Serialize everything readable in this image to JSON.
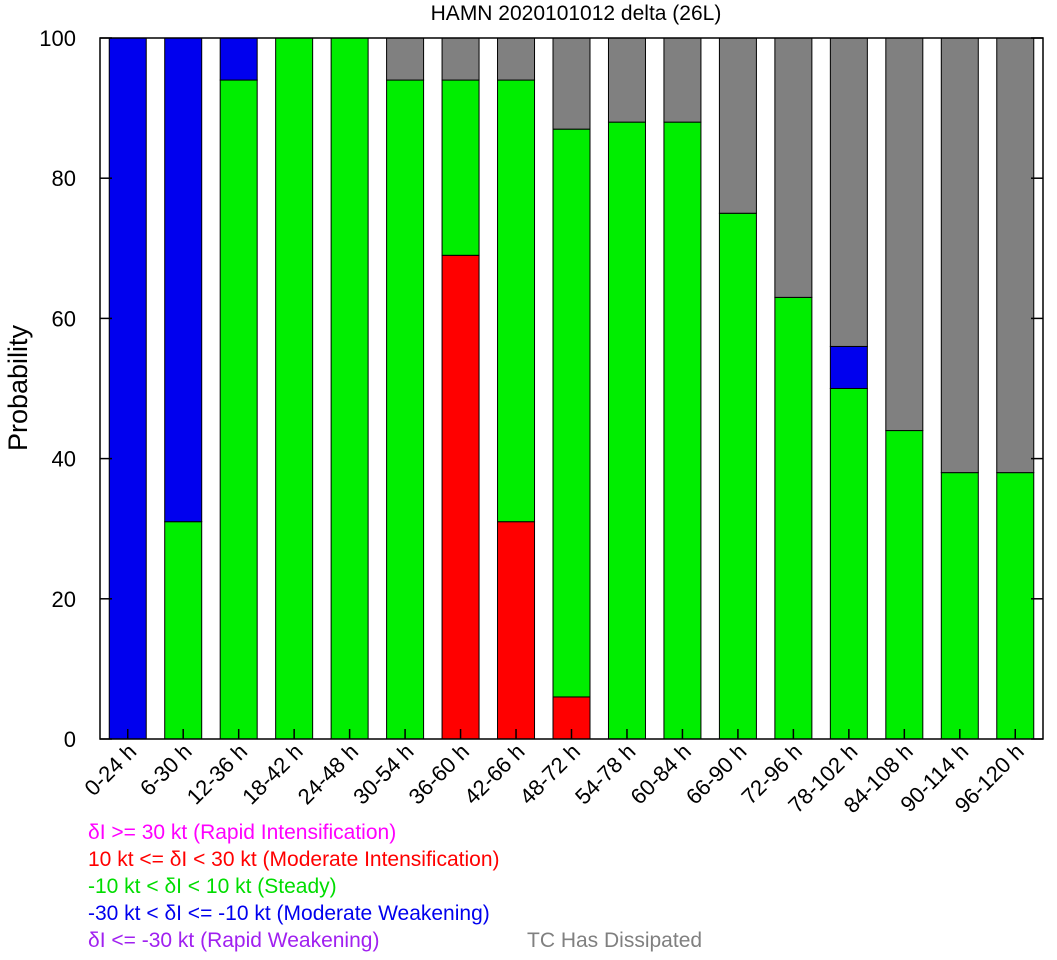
{
  "chart_data": {
    "type": "bar",
    "stacked": true,
    "title": "HAMN 2020101012 delta (26L)",
    "xlabel": "",
    "ylabel": "Probability",
    "ylim": [
      0,
      100
    ],
    "yticks": [
      0,
      20,
      40,
      60,
      80,
      100
    ],
    "grid": false,
    "categories": [
      "0-24 h",
      "6-30 h",
      "12-36 h",
      "18-42 h",
      "24-48 h",
      "30-54 h",
      "36-60 h",
      "42-66 h",
      "48-72 h",
      "54-78 h",
      "60-84 h",
      "66-90 h",
      "72-96 h",
      "78-102 h",
      "84-108 h",
      "90-114 h",
      "96-120 h"
    ],
    "series": [
      {
        "name": "δI >= 30 kt (Rapid Intensification)",
        "color": "#ff00ff",
        "values": [
          0,
          0,
          0,
          0,
          0,
          0,
          0,
          0,
          0,
          0,
          0,
          0,
          0,
          0,
          0,
          0,
          0
        ]
      },
      {
        "name": "10 kt <= δI < 30 kt (Moderate Intensification)",
        "color": "#ff0000",
        "values": [
          0,
          0,
          0,
          0,
          0,
          0,
          69,
          31,
          6,
          0,
          0,
          0,
          0,
          0,
          0,
          0,
          0
        ]
      },
      {
        "name": "-10 kt < δI < 10 kt (Steady)",
        "color": "#00ee00",
        "values": [
          0,
          31,
          94,
          100,
          100,
          94,
          25,
          63,
          81,
          88,
          88,
          75,
          63,
          50,
          44,
          38,
          38
        ]
      },
      {
        "name": "-30 kt < δI <= -10 kt (Moderate Weakening)",
        "color": "#0000ee",
        "values": [
          100,
          69,
          6,
          0,
          0,
          0,
          0,
          0,
          0,
          0,
          0,
          0,
          0,
          6,
          0,
          0,
          0
        ]
      },
      {
        "name": "δI <= -30 kt (Rapid Weakening)",
        "color": "#a020f0",
        "values": [
          0,
          0,
          0,
          0,
          0,
          0,
          0,
          0,
          0,
          0,
          0,
          0,
          0,
          0,
          0,
          0,
          0
        ]
      },
      {
        "name": "TC Has Dissipated",
        "color": "#808080",
        "values": [
          0,
          0,
          0,
          0,
          0,
          6,
          6,
          6,
          13,
          12,
          12,
          25,
          37,
          44,
          56,
          62,
          62
        ]
      }
    ]
  },
  "legend": [
    {
      "text": "δI >= 30 kt (Rapid Intensification)",
      "color": "#ff00ff"
    },
    {
      "text": "10 kt <= δI < 30 kt (Moderate Intensification)",
      "color": "#ff0000"
    },
    {
      "text": "-10 kt < δI < 10 kt (Steady)",
      "color": "#00dd00"
    },
    {
      "text": "-30 kt < δI <= -10 kt (Moderate Weakening)",
      "color": "#0000ee"
    },
    {
      "text": "δI <= -30 kt (Rapid Weakening)",
      "color": "#a020f0"
    },
    {
      "text": "TC Has Dissipated",
      "color": "#808080"
    }
  ]
}
